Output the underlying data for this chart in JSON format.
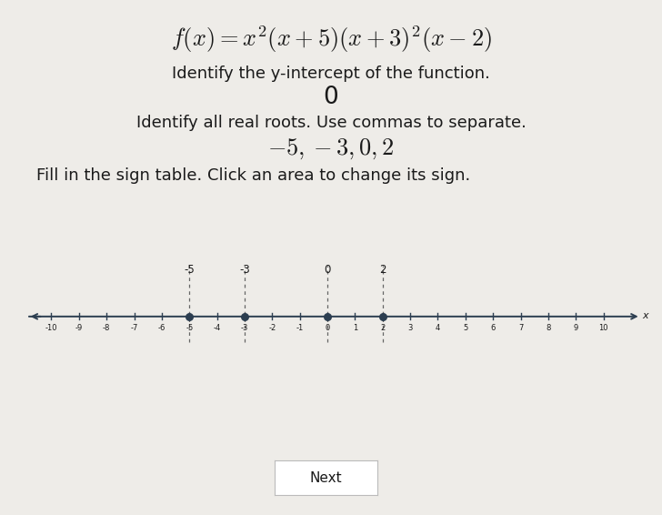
{
  "bg_color": "#eeece8",
  "title_formula": "$f(x) = x^2(x+5)(x+3)^2(x-2)$",
  "title_fontsize": 20,
  "q1_text": "Identify the y-intercept of the function.",
  "q1_answer": "0",
  "q2_text": "Identify all real roots. Use commas to separate.",
  "q2_answer": "$-5, -3, 0, 2$",
  "q3_text": "Fill in the sign table. Click an area to change its sign.",
  "roots": [
    -5,
    -3,
    0,
    2
  ],
  "root_labels": [
    "-5",
    "-3",
    "0",
    "2"
  ],
  "tick_values": [
    -10,
    -9,
    -8,
    -7,
    -6,
    -5,
    -4,
    -3,
    -2,
    -1,
    0,
    1,
    2,
    3,
    4,
    5,
    6,
    7,
    8,
    9,
    10
  ],
  "tick_labels": [
    "-10",
    "-9",
    "-8",
    "-7",
    "-6",
    "-5",
    "-4",
    "-3",
    "-2",
    "-1",
    "0",
    "1",
    "2",
    "3",
    "4",
    "5",
    "6",
    "7",
    "8",
    "9",
    "10"
  ],
  "dot_color": "#2c3e50",
  "line_color": "#2c3e50",
  "dashed_color": "#666666",
  "next_btn_text": "Next",
  "text_color": "#1a1a1a",
  "body_fontsize": 13,
  "answer_fontsize": 17,
  "formula_fontsize": 19
}
